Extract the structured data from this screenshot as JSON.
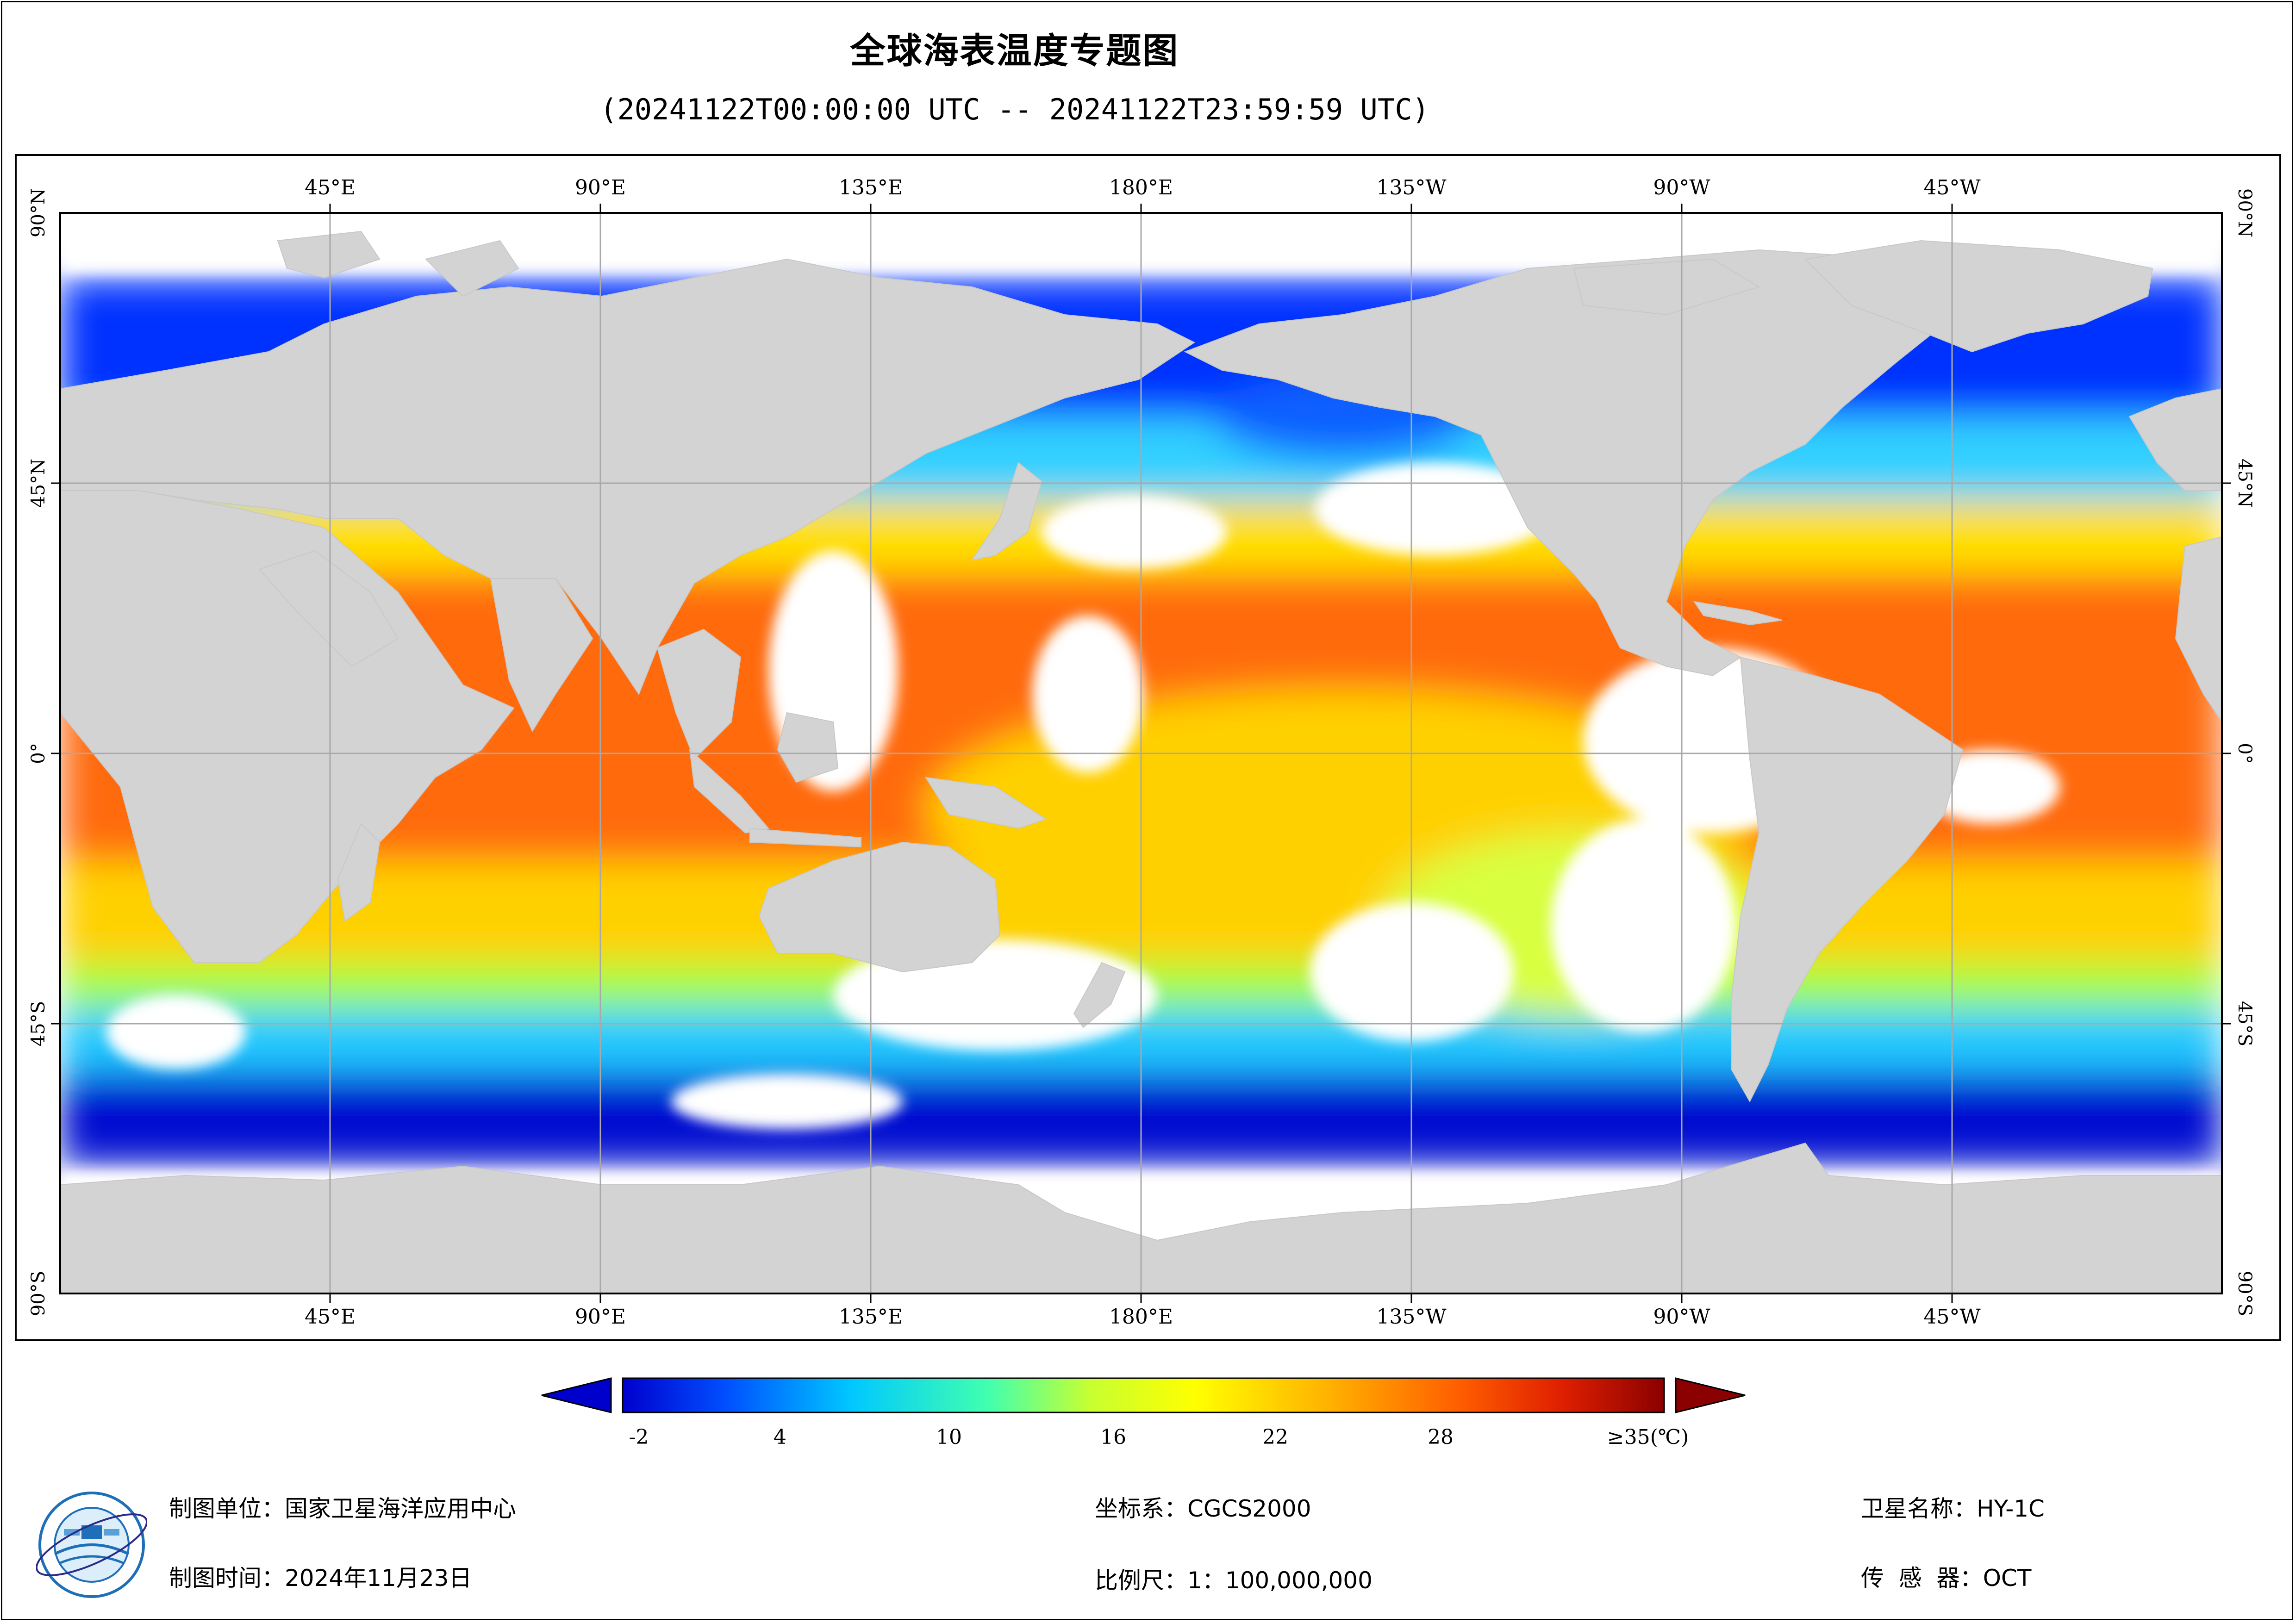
{
  "title": "全球海表温度专题图",
  "time_range": "(20241122T00:00:00 UTC -- 20241122T23:59:59 UTC)",
  "map": {
    "lon_labels": [
      "45°E",
      "90°E",
      "135°E",
      "180°E",
      "135°W",
      "90°W",
      "45°W"
    ],
    "lat_labels": [
      "90°N",
      "45°N",
      "0°",
      "45°S",
      "90°S"
    ],
    "colors": {
      "land": "#d3d3d3",
      "no_data": "#ffffff",
      "grid": "#a9a9a9"
    }
  },
  "colorbar": {
    "tick_labels": [
      "-2",
      "4",
      "10",
      "16",
      "22",
      "28",
      "≥35(℃)"
    ],
    "colors": [
      "#0000cd",
      "#0050ff",
      "#00c8ff",
      "#40ffb0",
      "#c8ff30",
      "#ffff00",
      "#ffb000",
      "#ff6000",
      "#e02000",
      "#8b0000"
    ],
    "under_color": "#0000cd",
    "over_color": "#8b0000"
  },
  "footer": {
    "unit": "制图单位：国家卫星海洋应用中心",
    "date": "制图时间：2024年11月23日",
    "crs": "坐标系：CGCS2000",
    "scale": "比例尺：1：100,000,000",
    "satellite": "卫星名称：HY-1C",
    "sensor": "传  感  器：OCT"
  }
}
